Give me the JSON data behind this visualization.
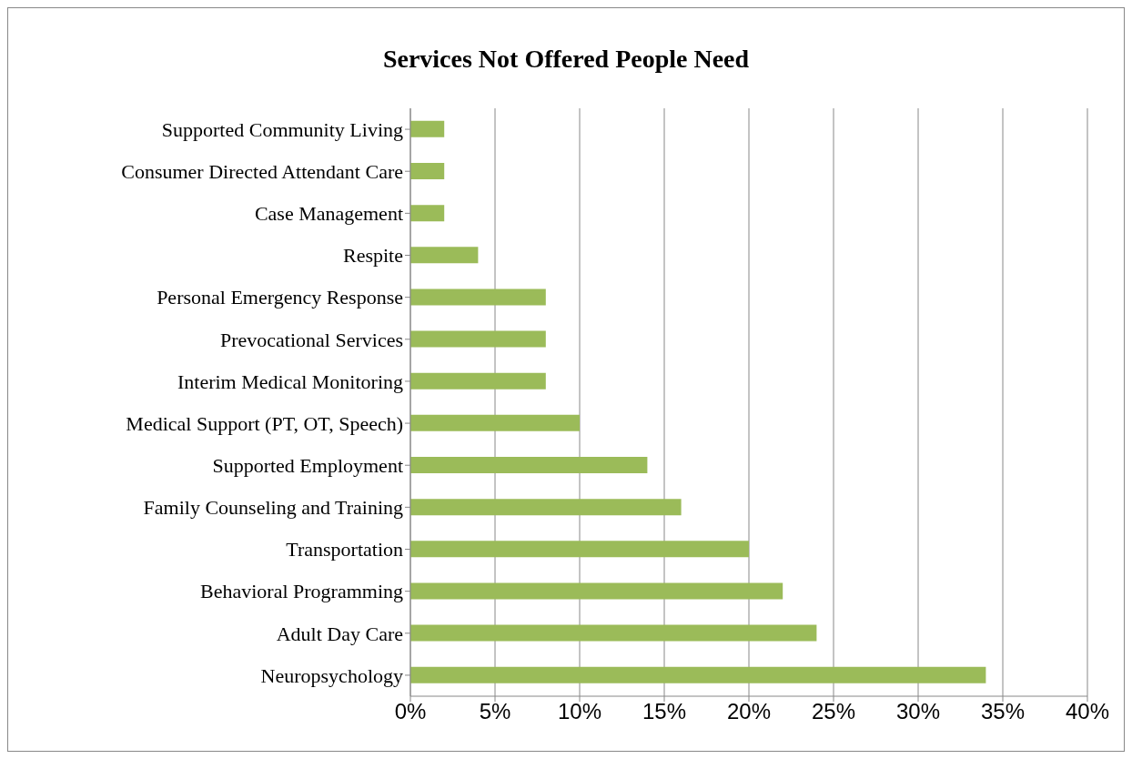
{
  "chart_data": {
    "type": "bar",
    "orientation": "horizontal",
    "title": "Services Not Offered People Need",
    "categories": [
      "Supported Community Living",
      "Consumer Directed Attendant Care",
      "Case Management",
      "Respite",
      "Personal Emergency Response",
      "Prevocational Services",
      "Interim Medical Monitoring",
      "Medical Support (PT, OT, Speech)",
      "Supported Employment",
      "Family Counseling and Training",
      "Transportation",
      "Behavioral Programming",
      "Adult Day Care",
      "Neuropsychology"
    ],
    "values": [
      2,
      2,
      2,
      4,
      8,
      8,
      8,
      10,
      14,
      16,
      20,
      22,
      24,
      34
    ],
    "color": "#9bbb59",
    "xlim": [
      0,
      40
    ],
    "xticks": [
      {
        "value": 0,
        "label": "0%"
      },
      {
        "value": 5,
        "label": "5%"
      },
      {
        "value": 10,
        "label": "10%"
      },
      {
        "value": 15,
        "label": "15%"
      },
      {
        "value": 20,
        "label": "20%"
      },
      {
        "value": 25,
        "label": "25%"
      },
      {
        "value": 30,
        "label": "30%"
      },
      {
        "value": 35,
        "label": "35%"
      },
      {
        "value": 40,
        "label": "40%"
      }
    ],
    "grid": "x",
    "legend": false
  }
}
